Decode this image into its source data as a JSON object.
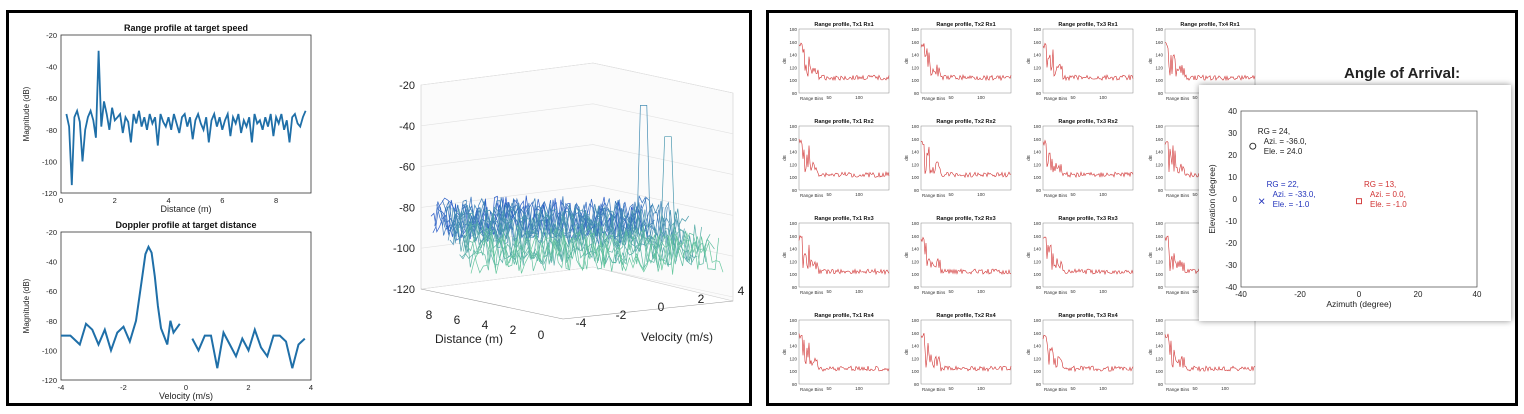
{
  "left": {
    "range_plot": {
      "title": "Range profile at target speed",
      "xlabel": "Distance (m)",
      "ylabel": "Magnitude (dB)",
      "xticks": [
        "0",
        "2",
        "4",
        "6",
        "8"
      ],
      "yticks": [
        "-20",
        "-40",
        "-60",
        "-80",
        "-100",
        "-120"
      ],
      "color": "#1f6fa8"
    },
    "doppler_plot": {
      "title": "Doppler profile at target distance",
      "xlabel": "Velocity (m/s)",
      "ylabel": "Magnitude (dB)",
      "xticks": [
        "-4",
        "-2",
        "0",
        "2",
        "4"
      ],
      "yticks": [
        "-20",
        "-40",
        "-60",
        "-80",
        "-100",
        "-120"
      ],
      "color": "#1f6fa8"
    },
    "surface_plot": {
      "zticks": [
        "-20",
        "-40",
        "-60",
        "-80",
        "-100",
        "-120"
      ],
      "distance_ticks": [
        "8",
        "6",
        "4",
        "2",
        "0"
      ],
      "velocity_ticks": [
        "-4",
        "-2",
        "0",
        "2",
        "4"
      ],
      "xlabel": "Distance (m)",
      "ylabel": "Velocity (m/s)"
    }
  },
  "right": {
    "grid_titles": [
      [
        "Range profile, Tx1 Rx1",
        "Range profile, Tx2 Rx1",
        "Range profile, Tx3 Rx1",
        "Range profile, Tx4 Rx1"
      ],
      [
        "Range profile, Tx1 Rx2",
        "Range profile, Tx2 Rx2",
        "Range profile, Tx3 Rx2",
        "Range p"
      ],
      [
        "Range profile, Tx1 Rx3",
        "Range profile, Tx2 Rx3",
        "Range profile, Tx3 Rx3",
        "Range p"
      ],
      [
        "Range profile, Tx1 Rx4",
        "Range profile, Tx2 Rx4",
        "Range profile, Tx3 Rx4",
        "Range p"
      ]
    ],
    "grid_xlabel": "Range Bins",
    "grid_xticks": [
      "50",
      "100"
    ],
    "grid_yticks": [
      "180",
      "160",
      "140",
      "120",
      "100",
      "80"
    ],
    "grid_ylabel": "dB",
    "grid_color": "#d03030",
    "aoa": {
      "title": "Angle of Arrival:",
      "xlabel": "Azimuth (degree)",
      "ylabel": "Elevation (degree)",
      "xticks": [
        "-40",
        "-20",
        "0",
        "20",
        "40"
      ],
      "yticks": [
        "40",
        "30",
        "20",
        "10",
        "0",
        "-10",
        "-20",
        "-30",
        "-40"
      ]
    }
  },
  "chart_data": [
    {
      "type": "line",
      "title": "Range profile at target speed",
      "xlabel": "Distance (m)",
      "ylabel": "Magnitude (dB)",
      "xlim": [
        0,
        9.3
      ],
      "ylim": [
        -120,
        -20
      ],
      "x_start": 0.2,
      "x_step": 0.1,
      "values": [
        -70,
        -78,
        -115,
        -72,
        -68,
        -75,
        -100,
        -80,
        -72,
        -68,
        -74,
        -85,
        -30,
        -78,
        -62,
        -70,
        -80,
        -66,
        -74,
        -72,
        -70,
        -82,
        -72,
        -75,
        -88,
        -70,
        -76,
        -68,
        -78,
        -72,
        -80,
        -70,
        -76,
        -72,
        -90,
        -70,
        -75,
        -78,
        -72,
        -80,
        -70,
        -76,
        -82,
        -72,
        -70,
        -78,
        -72,
        -86,
        -74,
        -70,
        -76,
        -80,
        -72,
        -88,
        -74,
        -70,
        -78,
        -72,
        -80,
        -74,
        -70,
        -84,
        -72,
        -76,
        -70,
        -82,
        -74,
        -78,
        -72,
        -88,
        -70,
        -76,
        -74,
        -80,
        -72,
        -78,
        -70,
        -84,
        -72,
        -76,
        -70,
        -80,
        -74,
        -88,
        -72,
        -70,
        -76,
        -78,
        -72,
        -68
      ]
    },
    {
      "type": "line",
      "title": "Doppler profile at target distance",
      "xlabel": "Velocity (m/s)",
      "ylabel": "Magnitude (dB)",
      "xlim": [
        -4,
        4
      ],
      "ylim": [
        -120,
        -20
      ],
      "segments": [
        {
          "x": [
            -4,
            -3.7,
            -3.4,
            -3.2,
            -3.0,
            -2.8,
            -2.6,
            -2.4,
            -2.2,
            -2.0,
            -1.8,
            -1.6,
            -1.4,
            -1.3,
            -1.2,
            -1.1,
            -1.0,
            -0.9,
            -0.8,
            -0.6,
            -0.5,
            -0.4,
            -0.2
          ],
          "y": [
            -90,
            -90,
            -96,
            -82,
            -86,
            -96,
            -86,
            -100,
            -88,
            -84,
            -94,
            -80,
            -50,
            -35,
            -30,
            -34,
            -50,
            -70,
            -85,
            -96,
            -80,
            -88,
            -82
          ]
        },
        {
          "x": [
            0.2,
            0.4,
            0.6,
            0.8,
            1.0,
            1.2,
            1.4,
            1.6,
            1.8,
            2.0,
            2.2,
            2.4,
            2.6,
            2.8,
            3.0,
            3.2,
            3.4,
            3.6,
            3.8
          ],
          "y": [
            -92,
            -100,
            -90,
            -90,
            -112,
            -88,
            -96,
            -104,
            -92,
            -100,
            -86,
            -98,
            -104,
            -90,
            -90,
            -94,
            -112,
            -96,
            -92
          ]
        }
      ]
    },
    {
      "type": "heatmap",
      "xlabel": "Distance (m)",
      "ylabel": "Velocity (m/s)",
      "zlim": [
        -120,
        -20
      ],
      "peaks": [
        {
          "distance": 1.5,
          "velocity": -1.0,
          "z": -30
        },
        {
          "distance": 1.5,
          "velocity": 0.5,
          "z": -45
        }
      ]
    },
    {
      "type": "scatter",
      "title": "Angle of Arrival:",
      "xlabel": "Azimuth (degree)",
      "ylabel": "Elevation (degree)",
      "xlim": [
        -40,
        40
      ],
      "ylim": [
        -40,
        40
      ],
      "points": [
        {
          "x": -36,
          "y": 24,
          "marker": "o",
          "color": "#222222",
          "lines": [
            "RG = 24,",
            "Azi. = -36.0,",
            "Ele. = 24.0"
          ]
        },
        {
          "x": -33,
          "y": -1,
          "marker": "x",
          "color": "#2233bb",
          "lines": [
            "RG = 22,",
            "Azi. = -33.0,",
            "Ele. = -1.0"
          ]
        },
        {
          "x": 0,
          "y": -1,
          "marker": "s",
          "color": "#d03030",
          "lines": [
            "RG = 13,",
            "Azi. = 0.0,",
            "Ele. = -1.0"
          ]
        }
      ]
    }
  ]
}
